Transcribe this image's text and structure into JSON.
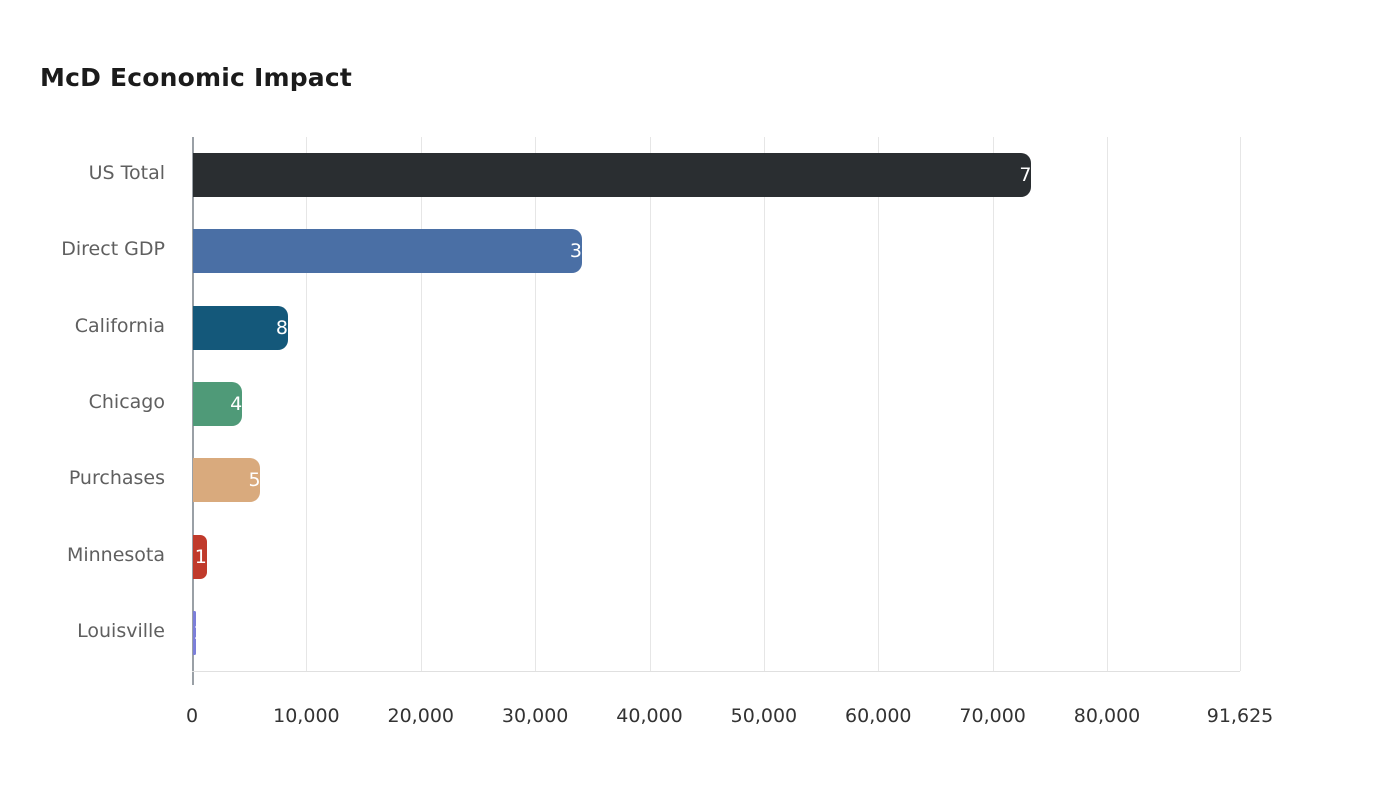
{
  "chart_data": {
    "type": "bar",
    "orientation": "horizontal",
    "title": "McD Economic Impact",
    "xlabel": "",
    "ylabel": "",
    "categories": [
      "US Total",
      "Direct GDP",
      "California",
      "Chicago",
      "Purchases",
      "Minnesota",
      "Louisville"
    ],
    "values": [
      73300,
      34000,
      8300,
      4300,
      5900,
      1200,
      250
    ],
    "colors": [
      "#2a2e31",
      "#4a6fa5",
      "#14587a",
      "#4f9a78",
      "#d9aa7d",
      "#c03a2b",
      "#7c7fd9"
    ],
    "xlim": [
      0,
      91625
    ],
    "x_ticks": [
      0,
      10000,
      20000,
      30000,
      40000,
      50000,
      60000,
      70000,
      80000,
      91625
    ],
    "x_tick_labels": [
      "0",
      "10,000",
      "20,000",
      "30,000",
      "40,000",
      "50,000",
      "60,000",
      "70,000",
      "80,000",
      "91,625"
    ],
    "grid": true,
    "legend": false,
    "value_labels": "clipped-white-at-bar-end"
  },
  "style": {
    "background_color": "#ffffff",
    "gridline_color": "#e6e6e6",
    "axis_line_color": "#9aa0a6",
    "title_color": "#1b1b1b",
    "tick_label_color": "#333333",
    "category_label_color": "#5f5f5f"
  }
}
